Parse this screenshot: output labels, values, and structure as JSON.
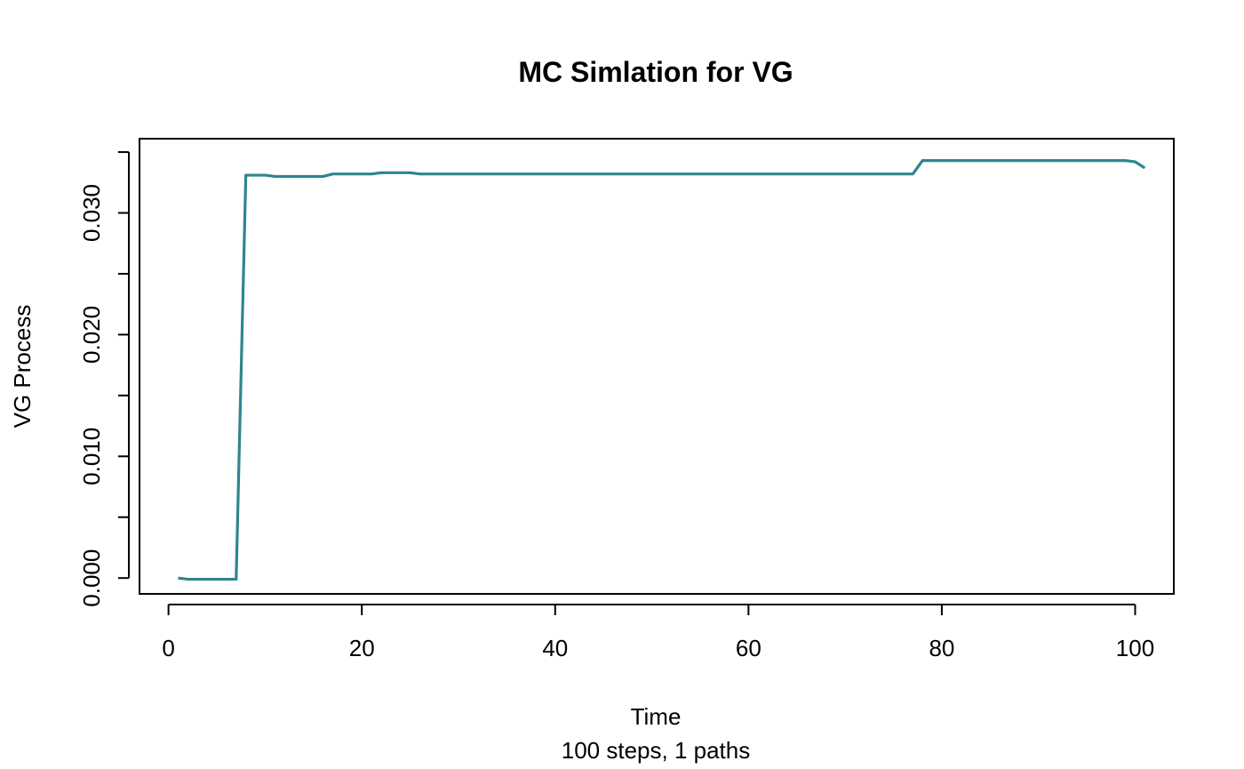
{
  "chart_data": {
    "type": "line",
    "title": "MC Simlation for VG",
    "xlabel": "Time",
    "sublabel": "100 steps, 1 paths",
    "ylabel": "VG Process",
    "xlim": [
      -3,
      104
    ],
    "ylim": [
      -0.0013,
      0.0361
    ],
    "x_ticks": [
      0,
      20,
      40,
      60,
      80,
      100
    ],
    "y_ticks": [
      0.0,
      0.005,
      0.01,
      0.015,
      0.02,
      0.025,
      0.03,
      0.035
    ],
    "y_tick_labels": [
      "0.000",
      "",
      "0.010",
      "",
      "0.020",
      "",
      "0.030",
      ""
    ],
    "line_color": "#2E8590",
    "series": [
      {
        "x": [
          1,
          2,
          3,
          4,
          5,
          6,
          7,
          8,
          9,
          10,
          11,
          12,
          13,
          14,
          15,
          16,
          17,
          18,
          19,
          20,
          21,
          22,
          23,
          24,
          25,
          26,
          27,
          28,
          29,
          30,
          35,
          40,
          45,
          50,
          55,
          60,
          65,
          70,
          75,
          77,
          78,
          79,
          80,
          85,
          90,
          95,
          99,
          100,
          101
        ],
        "y": [
          0.0,
          -0.0001,
          -0.0001,
          -0.0001,
          -0.0001,
          -0.0001,
          -0.0001,
          0.0331,
          0.0331,
          0.0331,
          0.033,
          0.033,
          0.033,
          0.033,
          0.033,
          0.033,
          0.0332,
          0.0332,
          0.0332,
          0.0332,
          0.0332,
          0.0333,
          0.0333,
          0.0333,
          0.0333,
          0.0332,
          0.0332,
          0.0332,
          0.0332,
          0.0332,
          0.0332,
          0.0332,
          0.0332,
          0.0332,
          0.0332,
          0.0332,
          0.0332,
          0.0332,
          0.0332,
          0.0332,
          0.0343,
          0.0343,
          0.0343,
          0.0343,
          0.0343,
          0.0343,
          0.0343,
          0.0342,
          0.0337
        ]
      }
    ]
  }
}
